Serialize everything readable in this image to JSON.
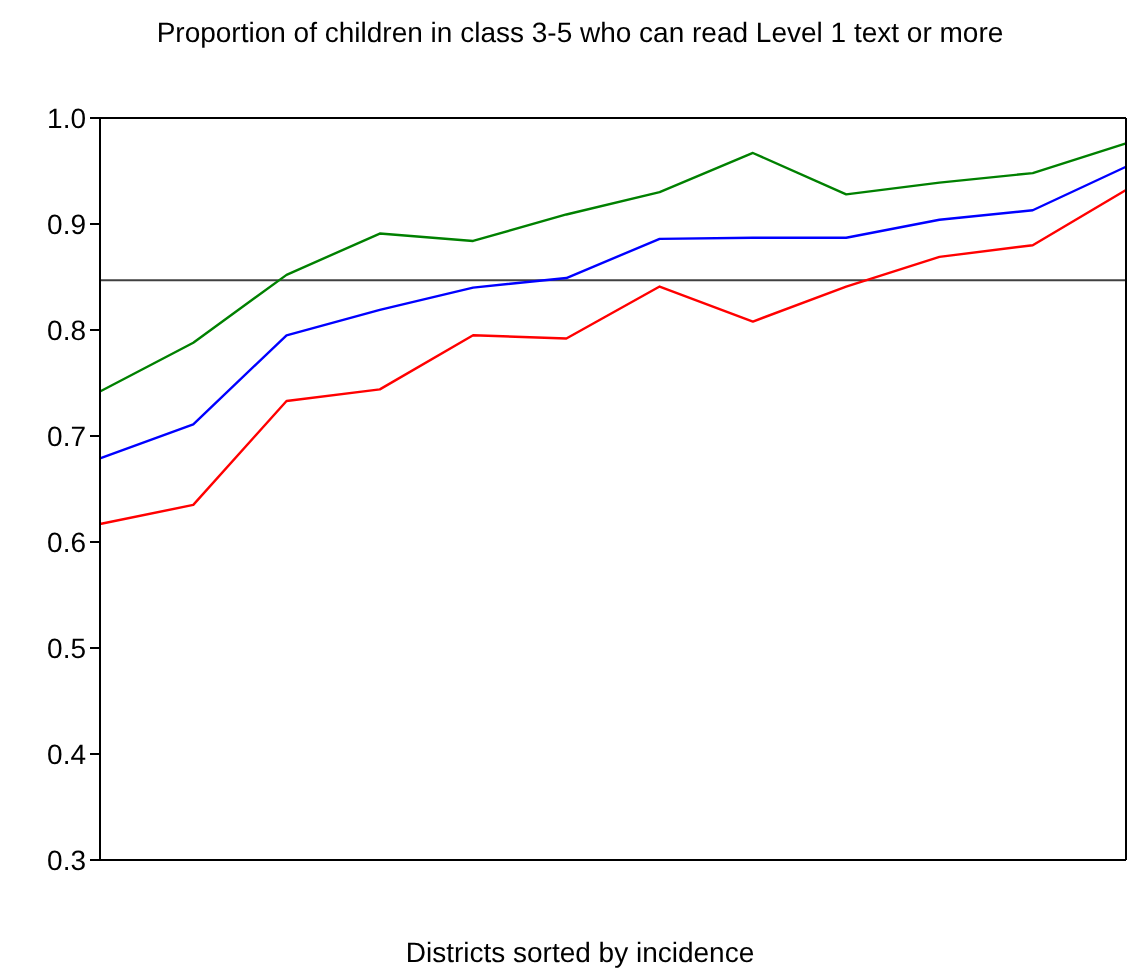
{
  "chart_data": {
    "type": "line",
    "title": "Proportion of children in class 3-5 who can read Level 1 text or more",
    "xlabel": "Districts sorted by incidence",
    "categories": [
      null,
      null,
      null,
      null,
      null,
      null,
      null,
      null,
      null,
      null,
      null,
      null
    ],
    "series": [
      {
        "color": "#008000",
        "values": [
          0.742,
          0.788,
          0.852,
          0.891,
          0.884,
          0.909,
          0.93,
          0.967,
          0.928,
          0.939,
          0.948,
          0.976
        ]
      },
      {
        "color": "#0000ff",
        "values": [
          0.679,
          0.711,
          0.795,
          0.819,
          0.84,
          0.849,
          0.886,
          0.887,
          0.887,
          0.904,
          0.913,
          0.954
        ]
      },
      {
        "color": "#ff0000",
        "values": [
          0.617,
          0.635,
          0.733,
          0.744,
          0.795,
          0.792,
          0.841,
          0.808,
          0.841,
          0.869,
          0.88,
          0.932
        ]
      }
    ],
    "ylim": [
      0.3,
      1.0
    ],
    "yticks": [
      {
        "value": 0.3,
        "label": "0.3"
      },
      {
        "value": 0.4,
        "label": "0.4"
      },
      {
        "value": 0.5,
        "label": "0.5"
      },
      {
        "value": 0.6,
        "label": "0.6"
      },
      {
        "value": 0.7,
        "label": "0.7"
      },
      {
        "value": 0.8,
        "label": "0.8"
      },
      {
        "value": 0.9,
        "label": "0.9"
      },
      {
        "value": 1.0,
        "label": "1.0"
      }
    ],
    "ref_lines": [
      {
        "axis": "y",
        "value": 0.847,
        "color": "#404040"
      }
    ],
    "grid": false,
    "legend": false,
    "marker": "none",
    "line_style": "solid"
  }
}
